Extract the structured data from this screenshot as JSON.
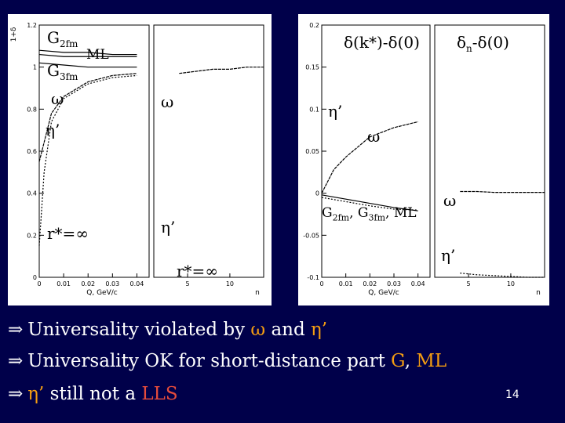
{
  "chart_data": [
    {
      "type": "line",
      "title": "",
      "ylabel": "1+δ",
      "xlabel_k": "Q, GeV/c",
      "xlabel_n": "n",
      "ylim": [
        0,
        1.2
      ],
      "yticks": [
        "0",
        "0.2",
        "0.4",
        "0.6",
        "0.8",
        "1",
        "1.2"
      ],
      "xticks_k": [
        "0",
        "0.01",
        "0.02",
        "0.03",
        "0.04"
      ],
      "xticks_n": [
        "5",
        "10"
      ],
      "labels": {
        "g2": "G",
        "g2_sub": "2fm",
        "ml": "ML",
        "g3": "G",
        "g3_sub": "3fm",
        "omega_left": "ω",
        "omega_right": "ω",
        "eta_left": "η’",
        "eta_right": "η’",
        "rinf": "r*=∞",
        "rinf2": "r*=∞"
      },
      "series": [
        {
          "name": "G2fm",
          "x": [
            0,
            0.01,
            0.02,
            0.03,
            0.04
          ],
          "values": [
            1.08,
            1.07,
            1.07,
            1.06,
            1.06
          ]
        },
        {
          "name": "ML",
          "x": [
            0,
            0.01,
            0.02,
            0.03,
            0.04
          ],
          "values": [
            1.06,
            1.05,
            1.05,
            1.05,
            1.05
          ]
        },
        {
          "name": "G3fm",
          "x": [
            0,
            0.01,
            0.02,
            0.03,
            0.04
          ],
          "values": [
            1.02,
            1.01,
            1.0,
            1.0,
            1.0
          ]
        },
        {
          "name": "omega",
          "x": [
            0,
            0.005,
            0.01,
            0.02,
            0.03,
            0.04
          ],
          "values": [
            0.55,
            0.78,
            0.86,
            0.93,
            0.96,
            0.97
          ]
        },
        {
          "name": "eta_prime",
          "x": [
            0,
            0.002,
            0.005,
            0.01,
            0.02,
            0.03,
            0.04
          ],
          "values": [
            0.15,
            0.5,
            0.74,
            0.85,
            0.92,
            0.95,
            0.96
          ]
        },
        {
          "name": "omega_n",
          "x": [
            4,
            6,
            8,
            10,
            12,
            14
          ],
          "values": [
            0.97,
            0.98,
            0.99,
            0.99,
            1.0,
            1.0
          ]
        }
      ]
    },
    {
      "type": "line",
      "title": "δ(k*)-δ(0)",
      "title_n": "δn-δ(0)",
      "xlabel_k": "Q, GeV/c",
      "xlabel_n": "n",
      "ylim": [
        -0.1,
        0.2
      ],
      "yticks": [
        "-0.1",
        "-0.05",
        "0",
        "0.05",
        "0.1",
        "0.15",
        "0.2"
      ],
      "xticks_k": [
        "0",
        "0.01",
        "0.02",
        "0.03",
        "0.04"
      ],
      "xticks_n": [
        "5",
        "10"
      ],
      "labels": {
        "title_k": "δ(k*)-δ(0)",
        "title_n_main": "δ",
        "title_n_sub": "n",
        "title_n_rest": "-δ(0)",
        "eta_k": "η’",
        "omega_k": "ω",
        "g_group": "G",
        "g_group_sub1": "2fm",
        "g_group_mid": ", G",
        "g_group_sub2": "3fm",
        "g_group_end": ", ML",
        "omega_n": "ω",
        "eta_n": "η’"
      },
      "series": [
        {
          "name": "omega",
          "x": [
            0,
            0.005,
            0.01,
            0.02,
            0.03,
            0.04
          ],
          "values": [
            0.0,
            0.028,
            0.043,
            0.067,
            0.078,
            0.085
          ]
        },
        {
          "name": "G_ML",
          "x": [
            0,
            0.01,
            0.02,
            0.03,
            0.04
          ],
          "values": [
            -0.002,
            -0.007,
            -0.012,
            -0.017,
            -0.021
          ]
        },
        {
          "name": "eta_prime",
          "x": [
            0,
            0.01,
            0.02,
            0.03,
            0.04
          ],
          "values": [
            -0.005,
            -0.01,
            -0.015,
            -0.019,
            -0.02
          ]
        },
        {
          "name": "omega_n",
          "x": [
            4,
            6,
            8,
            10,
            12,
            14
          ],
          "values": [
            0.002,
            0.002,
            0.001,
            0.001,
            0.001,
            0.001
          ]
        },
        {
          "name": "eta_n",
          "x": [
            4,
            6,
            8,
            10,
            12,
            14
          ],
          "values": [
            -0.095,
            -0.097,
            -0.098,
            -0.099,
            -0.1,
            -0.1
          ]
        }
      ]
    }
  ],
  "bullets": [
    {
      "arrow": "⇒",
      "text": "Universality violated by ",
      "em1": "ω",
      "mid": " and ",
      "em2": "η’"
    },
    {
      "arrow": "⇒",
      "text": "Universality OK for short-distance part ",
      "em1": "G",
      "mid": ", ",
      "em2": "ML"
    },
    {
      "arrow": "⇒",
      "em1": "η’",
      "text": " still not a ",
      "em2": "LLS"
    }
  ],
  "page_number": "14",
  "colors": {
    "background": "#00004a",
    "orange": "#f39c12",
    "red": "#e74c3c"
  }
}
